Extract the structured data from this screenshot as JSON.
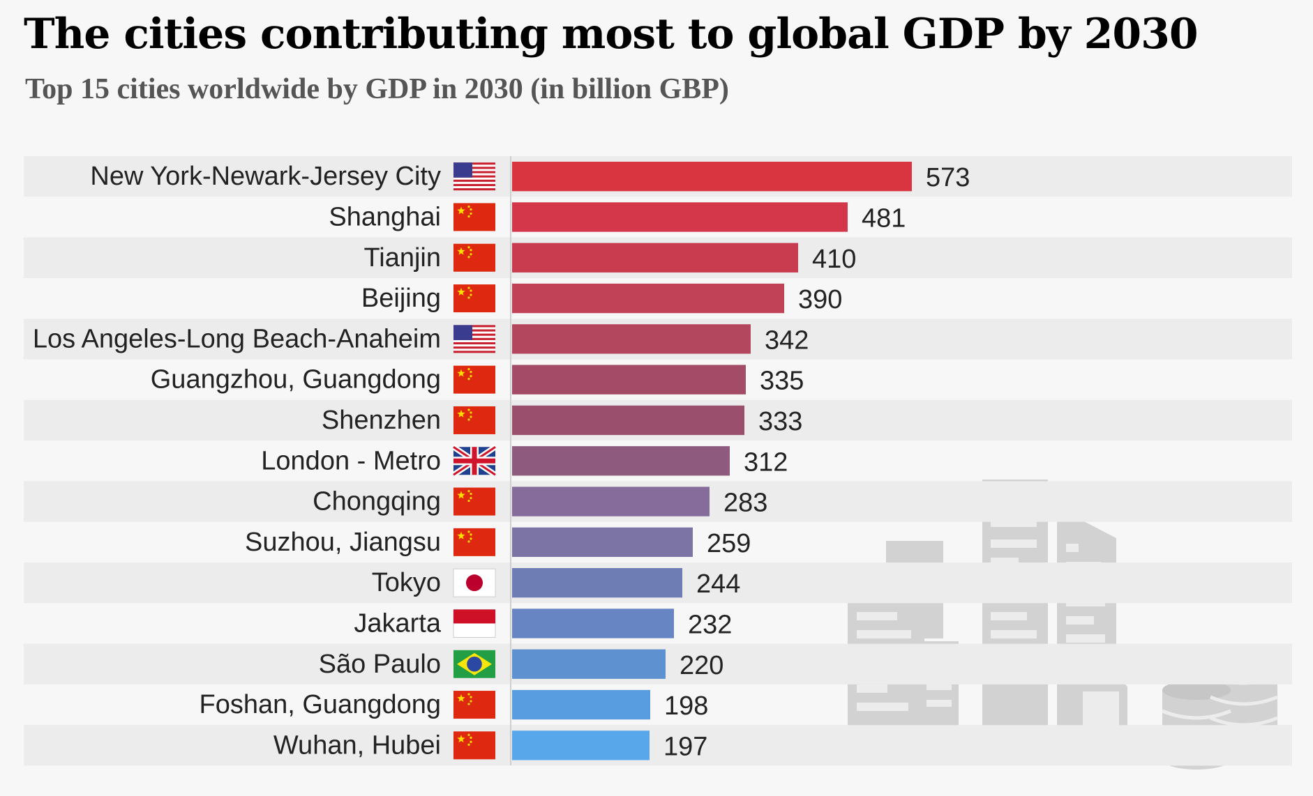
{
  "title": "The cities contributing most to global GDP by 2030",
  "subtitle": "Top 15 cities worldwide by GDP in 2030 (in billion GBP)",
  "chart_data": {
    "type": "bar",
    "orientation": "horizontal",
    "title": "The cities contributing most to global GDP by 2030",
    "subtitle": "Top 15 cities worldwide by GDP in 2030 (in billion GBP)",
    "xlabel": "",
    "ylabel": "",
    "grid": false,
    "legend": "none",
    "categories": [
      "New York-Newark-Jersey City",
      "Shanghai",
      "Tianjin",
      "Beijing",
      "Los Angeles-Long Beach-Anaheim",
      "Guangzhou, Guangdong",
      "Shenzhen",
      "London - Metro",
      "Chongqing",
      "Suzhou, Jiangsu",
      "Tokyo",
      "Jakarta",
      "São Paulo",
      "Foshan, Guangdong",
      "Wuhan, Hubei"
    ],
    "values": [
      573,
      481,
      410,
      390,
      342,
      335,
      333,
      312,
      283,
      259,
      244,
      232,
      220,
      198,
      197
    ],
    "flags": [
      "us-flag",
      "cn-flag",
      "cn-flag",
      "cn-flag",
      "us-flag",
      "cn-flag",
      "cn-flag",
      "uk-flag",
      "cn-flag",
      "cn-flag",
      "jp-flag",
      "id-flag",
      "br-flag",
      "cn-flag",
      "cn-flag"
    ],
    "bar_colors": [
      "#d93540",
      "#d4374a",
      "#c93c50",
      "#c14157",
      "#b2475e",
      "#a44b68",
      "#9a4f6d",
      "#8e5a7e",
      "#866c9a",
      "#7d74a6",
      "#6e7db3",
      "#6785c2",
      "#5e91cf",
      "#589de0",
      "#58a7ea"
    ],
    "background_art": "city-skyline-and-coins-illustration"
  }
}
